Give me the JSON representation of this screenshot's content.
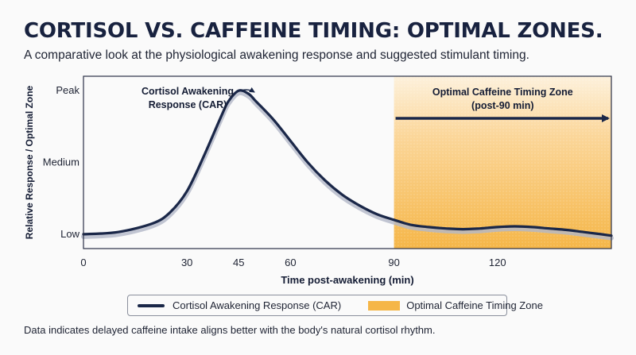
{
  "header": {
    "title": "CORTISOL VS. CAFFEINE TIMING: OPTIMAL ZONES.",
    "subtitle": "A comparative look at the physiological awakening response and suggested stimulant timing."
  },
  "footnote": "Data indicates delayed caffeine intake aligns better with the body's natural cortisol rhythm.",
  "colors": {
    "curve": "#1a2748",
    "curve_shadow": "#b3b8c8",
    "zone": "#f5b648",
    "zone_light": "#fde8c6"
  },
  "chart_data": {
    "type": "line",
    "xlabel": "Time post-awakening (min)",
    "ylabel": "Relative Response / Optimal Zone",
    "xlim": [
      0,
      153
    ],
    "ylim": [
      0.8,
      3.2
    ],
    "x_ticks": [
      0,
      30,
      45,
      60,
      90,
      120
    ],
    "y_ticks": [
      {
        "value": 1,
        "label": "Low"
      },
      {
        "value": 2,
        "label": "Medium"
      },
      {
        "value": 3,
        "label": "Peak"
      }
    ],
    "grid": false,
    "series": [
      {
        "name": "Cortisol Awakening Response (CAR)",
        "x": [
          0,
          10,
          20,
          25,
          30,
          35,
          40,
          42,
          45,
          48,
          50,
          55,
          60,
          65,
          70,
          75,
          80,
          85,
          90,
          95,
          100,
          105,
          110,
          115,
          120,
          125,
          130,
          135,
          140,
          145,
          150,
          153
        ],
        "y": [
          1.0,
          1.03,
          1.15,
          1.3,
          1.6,
          2.1,
          2.65,
          2.85,
          3.0,
          2.95,
          2.85,
          2.6,
          2.3,
          2.0,
          1.75,
          1.55,
          1.4,
          1.28,
          1.2,
          1.13,
          1.1,
          1.08,
          1.07,
          1.08,
          1.1,
          1.11,
          1.1,
          1.08,
          1.06,
          1.03,
          1.0,
          0.98
        ]
      }
    ],
    "zones": [
      {
        "name": "Optimal Caffeine Timing Zone",
        "label_line1": "Optimal Caffeine Timing Zone",
        "label_line2": "(post-90 min)",
        "x_start": 90,
        "x_end": 153
      }
    ],
    "annotations": [
      {
        "line1": "Cortisol Awakening",
        "line2": "Response (CAR)",
        "points_to_x": 45
      }
    ],
    "legend": {
      "placement": "bottom-center",
      "entries": [
        "Cortisol Awakening Response (CAR)",
        "Optimal Caffeine Timing Zone"
      ]
    }
  }
}
